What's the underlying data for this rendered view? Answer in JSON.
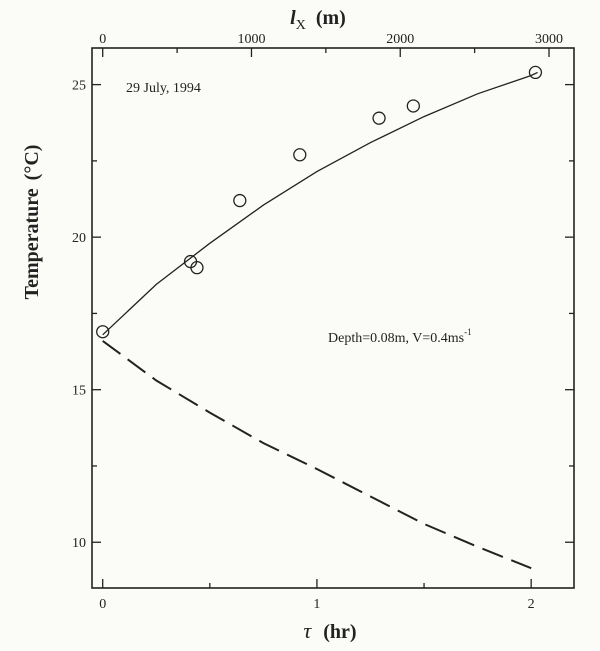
{
  "chart_data": {
    "type": "scatter",
    "xlabel_symbol": "τ",
    "xlabel_unit": "(hr)",
    "top_xlabel_symbol": "l",
    "top_xlabel_sub": "X",
    "top_xlabel_unit": "(m)",
    "ylabel": "Temperature",
    "ylabel_unit": "(°C)",
    "xlim": [
      -0.05,
      2.2
    ],
    "ylim": [
      8.5,
      26.2
    ],
    "x_ticks": [
      0,
      1,
      2
    ],
    "x_tick_labels": [
      "0",
      "1",
      "2"
    ],
    "top_x_ticks_m": [
      0,
      1000,
      2000,
      3000
    ],
    "top_x_tick_labels": [
      "0",
      "1000",
      "2000",
      "3000"
    ],
    "top_x_scale_m_per_hr": 1440,
    "y_ticks": [
      10,
      15,
      20,
      25
    ],
    "y_tick_labels": [
      "10",
      "15",
      "20",
      "25"
    ],
    "annotations": {
      "date": "29 July, 1994",
      "condition_main": "Depth=0.08m, V=0.4ms",
      "condition_sup": "-1"
    },
    "series": [
      {
        "style": "markers",
        "x": [
          0.0,
          0.41,
          0.44,
          0.64,
          0.92,
          1.29,
          1.45,
          2.02
        ],
        "y": [
          16.9,
          19.2,
          19.0,
          21.2,
          22.7,
          23.9,
          24.3,
          25.4
        ]
      },
      {
        "style": "solid",
        "x": [
          0.0,
          0.25,
          0.5,
          0.75,
          1.0,
          1.25,
          1.5,
          1.75,
          2.0,
          2.03
        ],
        "y": [
          16.8,
          18.45,
          19.8,
          21.05,
          22.15,
          23.1,
          23.95,
          24.7,
          25.3,
          25.4
        ]
      },
      {
        "style": "dashed",
        "x": [
          0.0,
          0.25,
          0.5,
          0.75,
          1.0,
          1.25,
          1.5,
          1.75,
          2.0
        ],
        "y": [
          16.6,
          15.3,
          14.25,
          13.25,
          12.4,
          11.5,
          10.6,
          9.85,
          9.15
        ]
      }
    ]
  }
}
